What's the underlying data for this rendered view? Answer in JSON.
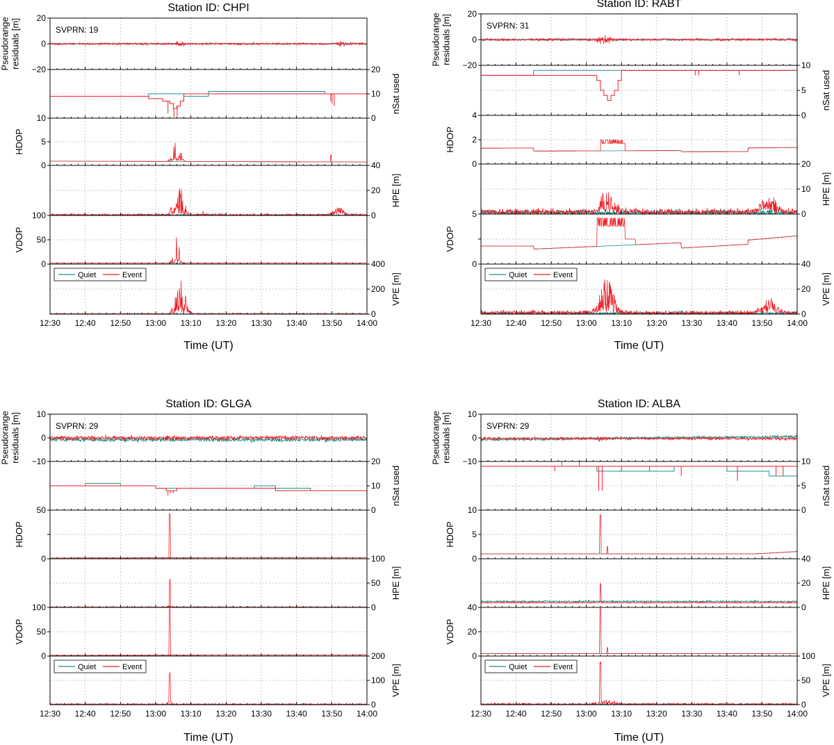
{
  "figure": {
    "xlabel": "Time (UT)",
    "xticks": [
      "12:30",
      "12:40",
      "12:50",
      "13:00",
      "13:10",
      "13:20",
      "13:30",
      "13:40",
      "13:50",
      "14:00"
    ],
    "legend": [
      "Quiet",
      "Event"
    ],
    "colors": {
      "quiet": "#1a8f8f",
      "event": "#ee1c24"
    }
  },
  "chart_data": [
    {
      "type": "line",
      "title": "Station ID: CHPI",
      "svprn": "SVPRN: 19",
      "x_range": [
        0,
        90
      ],
      "rows": [
        {
          "key": "res",
          "ylabel": "Pseudorange residuals [m]",
          "side": "left",
          "ticks": [
            "20",
            "0",
            "−20"
          ],
          "ylim": [
            -20,
            20
          ]
        },
        {
          "key": "nsat",
          "ylabel": "nSat used",
          "side": "right",
          "ticks": [
            "20",
            "10",
            "0"
          ],
          "ylim": [
            0,
            20
          ]
        },
        {
          "key": "hdop",
          "ylabel": "HDOP",
          "side": "left",
          "ticks": [
            "10",
            "5",
            "0"
          ],
          "ylim": [
            0,
            10
          ]
        },
        {
          "key": "hpe",
          "ylabel": "HPE [m]",
          "side": "right",
          "ticks": [
            "40",
            "20",
            "0"
          ],
          "ylim": [
            0,
            40
          ]
        },
        {
          "key": "vdop",
          "ylabel": "VDOP",
          "side": "left",
          "ticks": [
            "100",
            "50",
            "0"
          ],
          "ylim": [
            0,
            100
          ]
        },
        {
          "key": "vpe",
          "ylabel": "VPE [m]",
          "side": "right",
          "ticks": [
            "400",
            "200",
            "0"
          ],
          "ylim": [
            0,
            400
          ]
        }
      ]
    },
    {
      "type": "line",
      "title": "Station ID: RABT",
      "svprn": "SVPRN: 31",
      "x_range": [
        0,
        90
      ],
      "rows": [
        {
          "key": "res",
          "ylabel": "Pseudorange residuals [m]",
          "side": "left",
          "ticks": [
            "20",
            "0",
            "−20"
          ],
          "ylim": [
            -20,
            20
          ]
        },
        {
          "key": "nsat",
          "ylabel": "nSat used",
          "side": "right",
          "ticks": [
            "10",
            "5",
            "0"
          ],
          "ylim": [
            0,
            10
          ]
        },
        {
          "key": "hdop",
          "ylabel": "HDOP",
          "side": "left",
          "ticks": [
            "4",
            "2",
            "0"
          ],
          "ylim": [
            0,
            4
          ]
        },
        {
          "key": "hpe",
          "ylabel": "HPE [m]",
          "side": "right",
          "ticks": [
            "20",
            "10",
            "0"
          ],
          "ylim": [
            0,
            20
          ]
        },
        {
          "key": "vdop",
          "ylabel": "VDOP",
          "side": "left",
          "ticks": [
            "5",
            "",
            "0"
          ],
          "ylim": [
            0,
            5
          ]
        },
        {
          "key": "vpe",
          "ylabel": "VPE [m]",
          "side": "right",
          "ticks": [
            "40",
            "20",
            "0"
          ],
          "ylim": [
            0,
            40
          ]
        }
      ]
    },
    {
      "type": "line",
      "title": "Station ID: GLGA",
      "svprn": "SVPRN: 29",
      "x_range": [
        0,
        90
      ],
      "rows": [
        {
          "key": "res",
          "ylabel": "Pseudorange residuals [m]",
          "side": "left",
          "ticks": [
            "10",
            "0",
            "−10"
          ],
          "ylim": [
            -10,
            10
          ]
        },
        {
          "key": "nsat",
          "ylabel": "nSat used",
          "side": "right",
          "ticks": [
            "20",
            "10",
            "0"
          ],
          "ylim": [
            0,
            20
          ]
        },
        {
          "key": "hdop",
          "ylabel": "HDOP",
          "side": "left",
          "ticks": [
            "50",
            "",
            "0"
          ],
          "ylim": [
            0,
            50
          ]
        },
        {
          "key": "hpe",
          "ylabel": "HPE [m]",
          "side": "right",
          "ticks": [
            "100",
            "50",
            "0"
          ],
          "ylim": [
            0,
            100
          ]
        },
        {
          "key": "vdop",
          "ylabel": "VDOP",
          "side": "left",
          "ticks": [
            "100",
            "50",
            "0"
          ],
          "ylim": [
            0,
            100
          ]
        },
        {
          "key": "vpe",
          "ylabel": "VPE [m]",
          "side": "right",
          "ticks": [
            "200",
            "100",
            "0"
          ],
          "ylim": [
            0,
            200
          ]
        }
      ]
    },
    {
      "type": "line",
      "title": "Station ID: ALBA",
      "svprn": "SVPRN: 29",
      "x_range": [
        0,
        90
      ],
      "rows": [
        {
          "key": "res",
          "ylabel": "Pseudorange residuals [m]",
          "side": "left",
          "ticks": [
            "10",
            "0",
            "−10"
          ],
          "ylim": [
            -10,
            10
          ]
        },
        {
          "key": "nsat",
          "ylabel": "nSat used",
          "side": "right",
          "ticks": [
            "10",
            "5",
            "0"
          ],
          "ylim": [
            0,
            10
          ]
        },
        {
          "key": "hdop",
          "ylabel": "HDOP",
          "side": "left",
          "ticks": [
            "10",
            "5",
            "0"
          ],
          "ylim": [
            0,
            10
          ]
        },
        {
          "key": "hpe",
          "ylabel": "HPE [m]",
          "side": "right",
          "ticks": [
            "40",
            "20",
            "0"
          ],
          "ylim": [
            0,
            40
          ]
        },
        {
          "key": "vdop",
          "ylabel": "VDOP",
          "side": "left",
          "ticks": [
            "40",
            "20",
            "0"
          ],
          "ylim": [
            0,
            40
          ]
        },
        {
          "key": "vpe",
          "ylabel": "VPE [m]",
          "side": "right",
          "ticks": [
            "100",
            "50",
            "0"
          ],
          "ylim": [
            0,
            100
          ]
        }
      ]
    }
  ]
}
